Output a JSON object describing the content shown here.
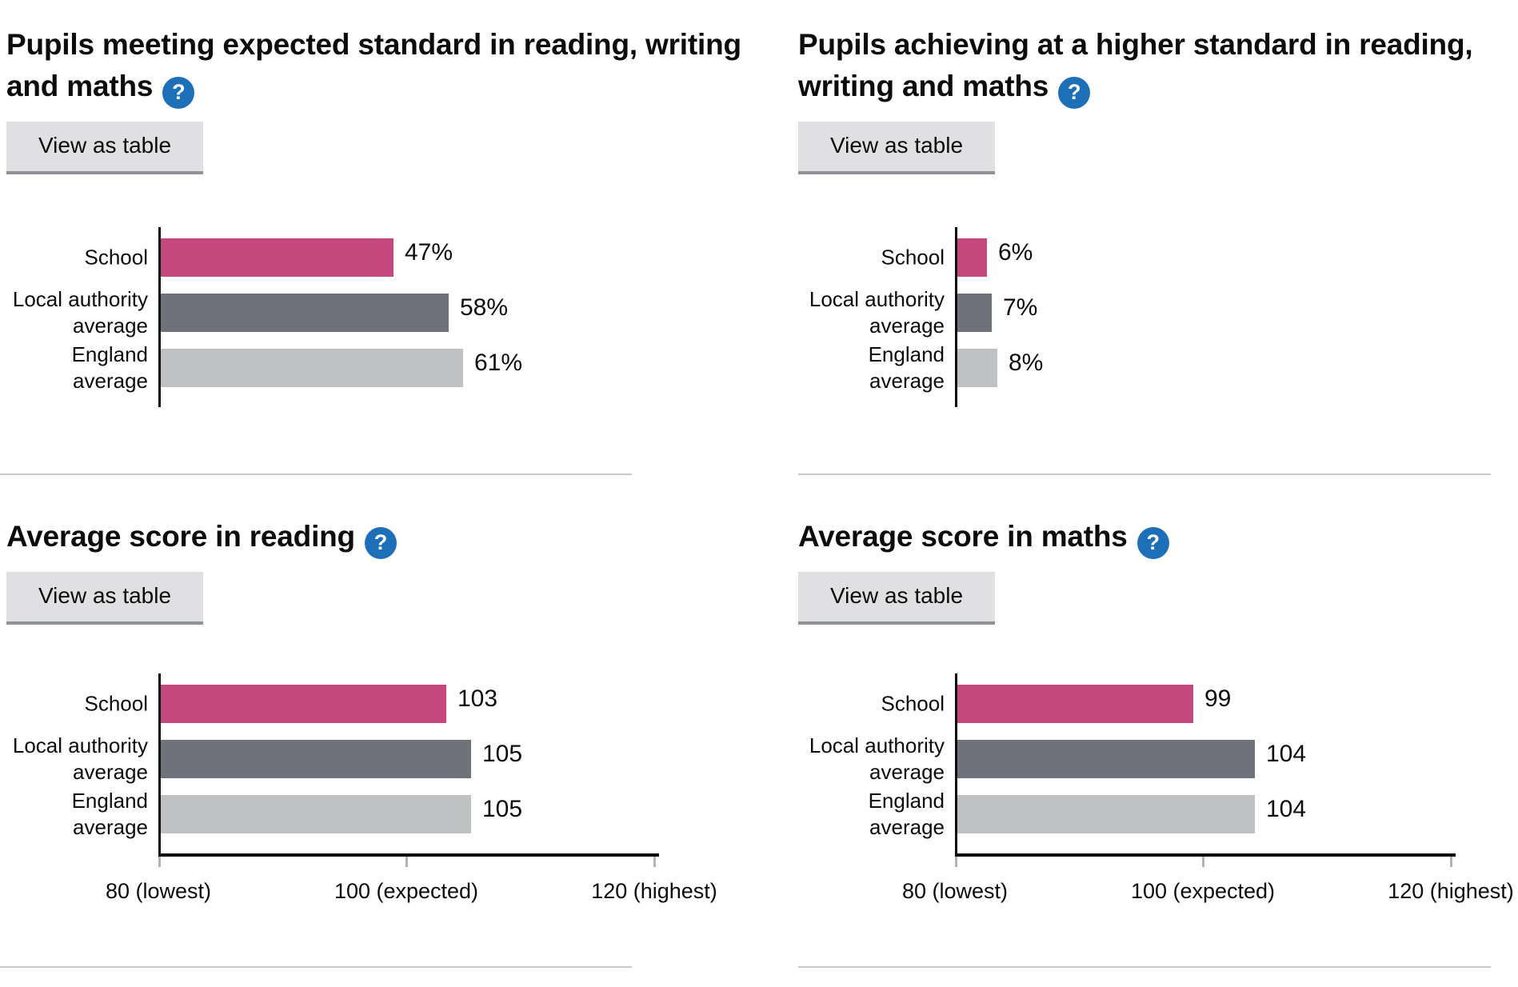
{
  "page": {
    "view_as_table_label": "View as table",
    "help_icon_glyph": "?"
  },
  "colors": {
    "school_bar": "#c4477e",
    "local_authority_bar": "#6f727b",
    "england_bar": "#bfc1c3",
    "bar_colors": [
      "#c4477e",
      "#6f727b",
      "#bfc1c3"
    ],
    "help_icon_bg": "#1d70b8",
    "axis": "#0b0c0c",
    "tick": "#b1b4b6"
  },
  "chart_data": [
    {
      "type": "bar",
      "orientation": "horizontal",
      "title": "Pupils meeting expected standard in reading, writing and maths",
      "categories": [
        "School",
        "Local authority average",
        "England average"
      ],
      "values": [
        47,
        58,
        61
      ],
      "value_labels": [
        "47%",
        "58%",
        "61%"
      ],
      "xlim": [
        0,
        100
      ],
      "x_ticks": [],
      "grid": false,
      "legend": false
    },
    {
      "type": "bar",
      "orientation": "horizontal",
      "title": "Pupils achieving at a higher standard in reading, writing and maths",
      "categories": [
        "School",
        "Local authority average",
        "England average"
      ],
      "values": [
        6,
        7,
        8
      ],
      "value_labels": [
        "6%",
        "7%",
        "8%"
      ],
      "xlim": [
        0,
        100
      ],
      "x_ticks": [],
      "grid": false,
      "legend": false
    },
    {
      "type": "bar",
      "orientation": "horizontal",
      "title": "Average score in reading",
      "categories": [
        "School",
        "Local authority average",
        "England average"
      ],
      "values": [
        103,
        105,
        105
      ],
      "value_labels": [
        "103",
        "105",
        "105"
      ],
      "xlim": [
        80,
        120
      ],
      "x_ticks": [
        {
          "value": 80,
          "label": "80 (lowest)"
        },
        {
          "value": 100,
          "label": "100 (expected)"
        },
        {
          "value": 120,
          "label": "120 (highest)"
        }
      ],
      "grid": false,
      "legend": false
    },
    {
      "type": "bar",
      "orientation": "horizontal",
      "title": "Average score in maths",
      "categories": [
        "School",
        "Local authority average",
        "England average"
      ],
      "values": [
        99,
        104,
        104
      ],
      "value_labels": [
        "99",
        "104",
        "104"
      ],
      "xlim": [
        80,
        120
      ],
      "x_ticks": [
        {
          "value": 80,
          "label": "80 (lowest)"
        },
        {
          "value": 100,
          "label": "100 (expected)"
        },
        {
          "value": 120,
          "label": "120 (highest)"
        }
      ],
      "grid": false,
      "legend": false
    }
  ]
}
